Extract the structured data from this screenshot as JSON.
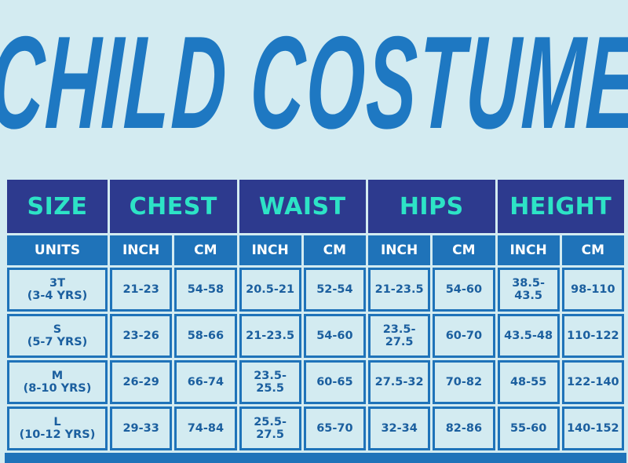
{
  "title": "CHILD COSTUME",
  "colors": {
    "background": "#d3ebf1",
    "title": "#1e78c2",
    "header_bg": "#2d3a8e",
    "header_text": "#2de3c6",
    "units_bg": "#1f73b9",
    "cell_text": "#1b5f9f"
  },
  "headers": [
    "SIZE",
    "CHEST",
    "WAIST",
    "HIPS",
    "HEIGHT"
  ],
  "units": [
    "UNITS",
    "INCH",
    "CM",
    "INCH",
    "CM",
    "INCH",
    "CM",
    "INCH",
    "CM"
  ],
  "rows": [
    {
      "size": "3T",
      "age": "(3-4 YRS)",
      "values": [
        "21-23",
        "54-58",
        "20.5-21",
        "52-54",
        "21-23.5",
        "54-60",
        "38.5-43.5",
        "98-110"
      ]
    },
    {
      "size": "S",
      "age": "(5-7 YRS)",
      "values": [
        "23-26",
        "58-66",
        "21-23.5",
        "54-60",
        "23.5-27.5",
        "60-70",
        "43.5-48",
        "110-122"
      ]
    },
    {
      "size": "M",
      "age": "(8-10 YRS)",
      "values": [
        "26-29",
        "66-74",
        "23.5-25.5",
        "60-65",
        "27.5-32",
        "70-82",
        "48-55",
        "122-140"
      ]
    },
    {
      "size": "L",
      "age": "(10-12 YRS)",
      "values": [
        "29-33",
        "74-84",
        "25.5-27.5",
        "65-70",
        "32-34",
        "82-86",
        "55-60",
        "140-152"
      ]
    }
  ]
}
